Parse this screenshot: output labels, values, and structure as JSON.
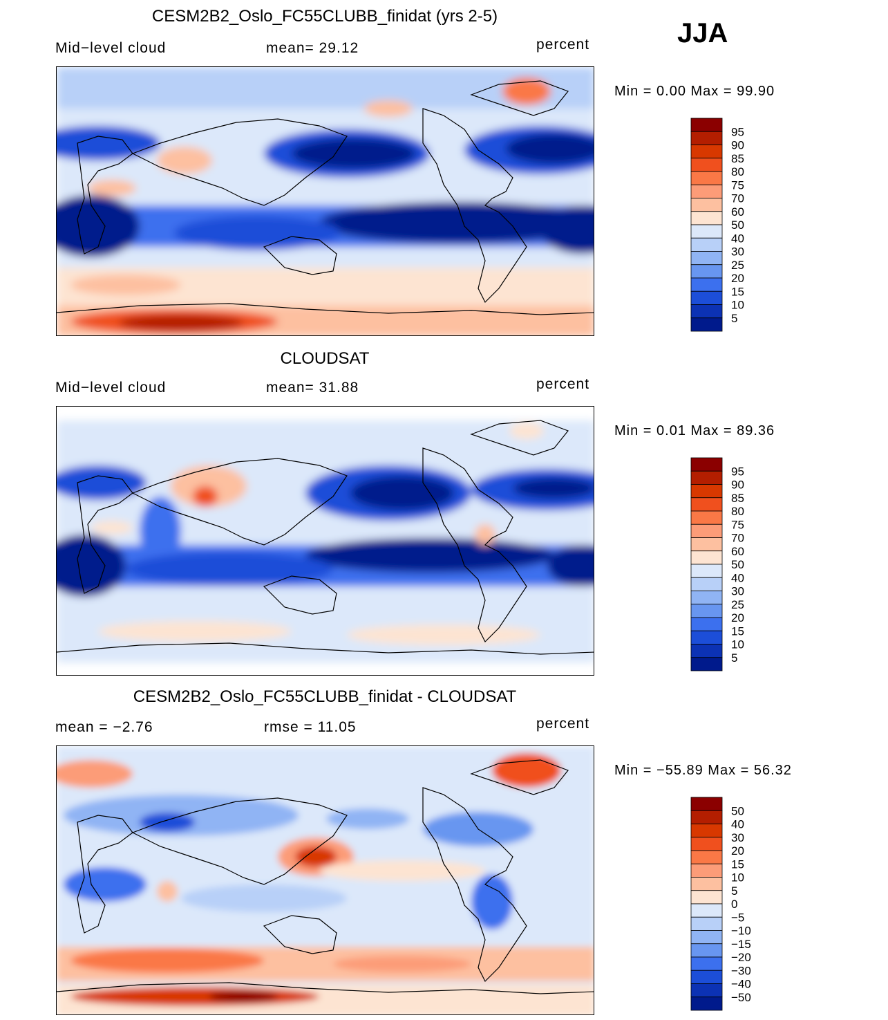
{
  "season": "JJA",
  "panels": [
    {
      "id": "model",
      "title": "CESM2B2_Oslo_FC55CLUBB_finidat (yrs 2-5)",
      "left_label": "Mid−level cloud",
      "center_label": "mean=   29.12",
      "units": "percent",
      "minmax": "Min  =     0.00  Max  =    99.90"
    },
    {
      "id": "obs",
      "title": "CLOUDSAT",
      "left_label": "Mid−level cloud",
      "center_label": "mean=   31.88",
      "units": "percent",
      "minmax": "Min  =     0.01  Max  =    89.36"
    },
    {
      "id": "diff",
      "title": "CESM2B2_Oslo_FC55CLUBB_finidat - CLOUDSAT",
      "left_label": "mean  =   −2.76",
      "center_label": "rmse  =    11.05",
      "units": "percent",
      "minmax": "Min  = −55.89  Max  =    56.32"
    }
  ],
  "colorbar_abs": {
    "labels": [
      "95",
      "90",
      "85",
      "80",
      "75",
      "70",
      "60",
      "50",
      "40",
      "30",
      "25",
      "20",
      "15",
      "10",
      "5"
    ],
    "colors": [
      "#8b0000",
      "#b41e00",
      "#d83800",
      "#f0501e",
      "#fa7846",
      "#fc9c78",
      "#fdc0a0",
      "#fde4d2",
      "#dce8fa",
      "#b8d0f8",
      "#90b4f4",
      "#6896f0",
      "#3c70ee",
      "#1c4ed8",
      "#0c32b4",
      "#001a8c"
    ]
  },
  "colorbar_diff": {
    "labels": [
      "50",
      "40",
      "30",
      "20",
      "15",
      "10",
      "5",
      "0",
      "−5",
      "−10",
      "−15",
      "−20",
      "−30",
      "−40",
      "−50"
    ],
    "colors": [
      "#8b0000",
      "#b41e00",
      "#d83800",
      "#f0501e",
      "#fa7846",
      "#fc9c78",
      "#fdc0a0",
      "#fde4d2",
      "#dce8fa",
      "#b8d0f8",
      "#90b4f4",
      "#6896f0",
      "#3c70ee",
      "#1c4ed8",
      "#0c32b4",
      "#001a8c"
    ]
  },
  "chart_data": [
    {
      "type": "heatmap",
      "title": "CESM2B2_Oslo_FC55CLUBB_finidat (yrs 2-5)",
      "variable": "Mid-level cloud",
      "units": "percent",
      "mean": 29.12,
      "min": 0.0,
      "max": 99.9,
      "levels": [
        5,
        10,
        15,
        20,
        25,
        30,
        40,
        50,
        60,
        70,
        75,
        80,
        85,
        90,
        95
      ]
    },
    {
      "type": "heatmap",
      "title": "CLOUDSAT",
      "variable": "Mid-level cloud",
      "units": "percent",
      "mean": 31.88,
      "min": 0.01,
      "max": 89.36,
      "levels": [
        5,
        10,
        15,
        20,
        25,
        30,
        40,
        50,
        60,
        70,
        75,
        80,
        85,
        90,
        95
      ]
    },
    {
      "type": "heatmap",
      "title": "CESM2B2_Oslo_FC55CLUBB_finidat - CLOUDSAT",
      "units": "percent",
      "mean": -2.76,
      "rmse": 11.05,
      "min": -55.89,
      "max": 56.32,
      "levels": [
        -50,
        -40,
        -30,
        -20,
        -15,
        -10,
        -5,
        0,
        5,
        10,
        15,
        20,
        30,
        40,
        50
      ]
    }
  ]
}
